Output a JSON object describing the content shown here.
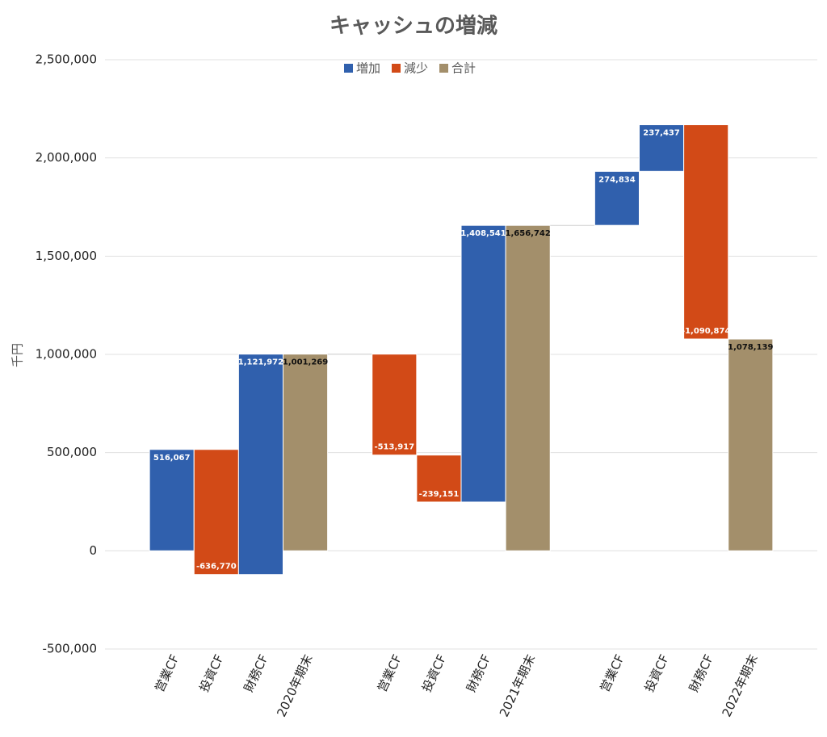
{
  "chart_data": {
    "type": "waterfall",
    "title": "キャッシュの増減",
    "y_label": "千円",
    "categories": [
      null,
      "営業CF",
      "投資CF",
      "財務CF",
      "2020年期末",
      null,
      "営業CF",
      "投資CF",
      "財務CF",
      "2021年期末",
      null,
      "営業CF",
      "投資CF",
      "財務CF",
      "2022年期末",
      null
    ],
    "series": [
      {
        "name": "増加",
        "color": "#3060ad",
        "values": [
          null,
          516067,
          null,
          1121972,
          null,
          null,
          null,
          null,
          1408541,
          null,
          null,
          274834,
          237437,
          null,
          null,
          null
        ],
        "value_labels": [
          null,
          "516,067",
          null,
          "1,121,972",
          null,
          null,
          null,
          null,
          "1,408,541",
          null,
          null,
          "274,834",
          "237,437",
          null,
          null,
          null
        ]
      },
      {
        "name": "減少",
        "color": "#d24a17",
        "values": [
          null,
          null,
          -636770,
          null,
          null,
          null,
          -513917,
          -239151,
          null,
          null,
          null,
          null,
          null,
          -1090874,
          null,
          null
        ],
        "value_labels": [
          null,
          null,
          "-636,770",
          null,
          null,
          null,
          "-513,917",
          "-239,151",
          null,
          null,
          null,
          null,
          null,
          "-1,090,874",
          null,
          null
        ]
      },
      {
        "name": "合計",
        "color": "#a38f6b",
        "total": true,
        "values": [
          null,
          null,
          null,
          null,
          1001269,
          null,
          null,
          null,
          null,
          1656742,
          null,
          null,
          null,
          null,
          1078139,
          null
        ],
        "value_labels": [
          null,
          null,
          null,
          null,
          "1,001,269",
          null,
          null,
          null,
          null,
          "1,656,742",
          null,
          null,
          null,
          null,
          "1,078,139",
          null
        ]
      }
    ],
    "ylim": [
      -500000,
      2500000
    ],
    "yticks": [
      {
        "value": -500000,
        "label": "-500,000"
      },
      0,
      {
        "value": 500000,
        "label": "500,000"
      },
      {
        "value": 1000000,
        "label": "1,000,000"
      },
      {
        "value": 1500000,
        "label": "1,500,000"
      },
      {
        "value": 2000000,
        "label": "2,000,000"
      },
      {
        "value": 2500000,
        "label": "2,500,000"
      }
    ],
    "grid": true,
    "legend": "top"
  }
}
